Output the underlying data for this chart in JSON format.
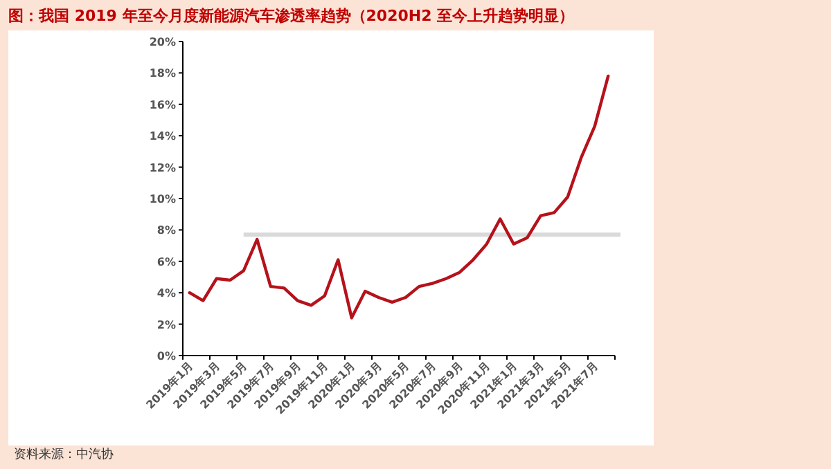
{
  "chart_data": {
    "type": "line",
    "title": "图：我国 2019 年至今月度新能源汽车渗透率趋势（2020H2 至今上升趋势明显）",
    "categories": [
      "2019年1月",
      null,
      "2019年3月",
      null,
      "2019年5月",
      null,
      "2019年7月",
      null,
      "2019年9月",
      null,
      "2019年11月",
      null,
      "2020年1月",
      null,
      "2020年3月",
      null,
      "2020年5月",
      null,
      "2020年7月",
      null,
      "2020年9月",
      null,
      "2020年11月",
      null,
      "2021年1月",
      null,
      "2021年3月",
      null,
      "2021年5月",
      null,
      "2021年7月",
      null
    ],
    "series": [
      {
        "color": "#b5121b",
        "values": [
          4.0,
          3.5,
          4.9,
          4.8,
          5.4,
          7.4,
          4.4,
          4.3,
          3.5,
          3.2,
          3.8,
          6.1,
          2.4,
          4.1,
          3.7,
          3.4,
          3.7,
          4.4,
          4.6,
          4.9,
          5.3,
          6.1,
          7.1,
          8.7,
          7.1,
          7.5,
          8.9,
          9.1,
          10.1,
          12.6,
          14.6,
          17.8
        ]
      }
    ],
    "ylim": [
      0,
      20
    ],
    "yticks": [
      {
        "value": 0,
        "label": "0%"
      },
      {
        "value": 2,
        "label": "2%"
      },
      {
        "value": 4,
        "label": "4%"
      },
      {
        "value": 6,
        "label": "6%"
      },
      {
        "value": 8,
        "label": "8%"
      },
      {
        "value": 10,
        "label": "10%"
      },
      {
        "value": 12,
        "label": "12%"
      },
      {
        "value": 14,
        "label": "14%"
      },
      {
        "value": 16,
        "label": "16%"
      },
      {
        "value": 18,
        "label": "18%"
      },
      {
        "value": 20,
        "label": "20%"
      }
    ],
    "ref_lines": [
      {
        "axis": "y",
        "value": 7.7,
        "color": "#d9d9d9"
      }
    ],
    "grid": false,
    "marker": "none",
    "line_style": "solid",
    "annotations": [
      "资料来源：中汽协"
    ]
  }
}
